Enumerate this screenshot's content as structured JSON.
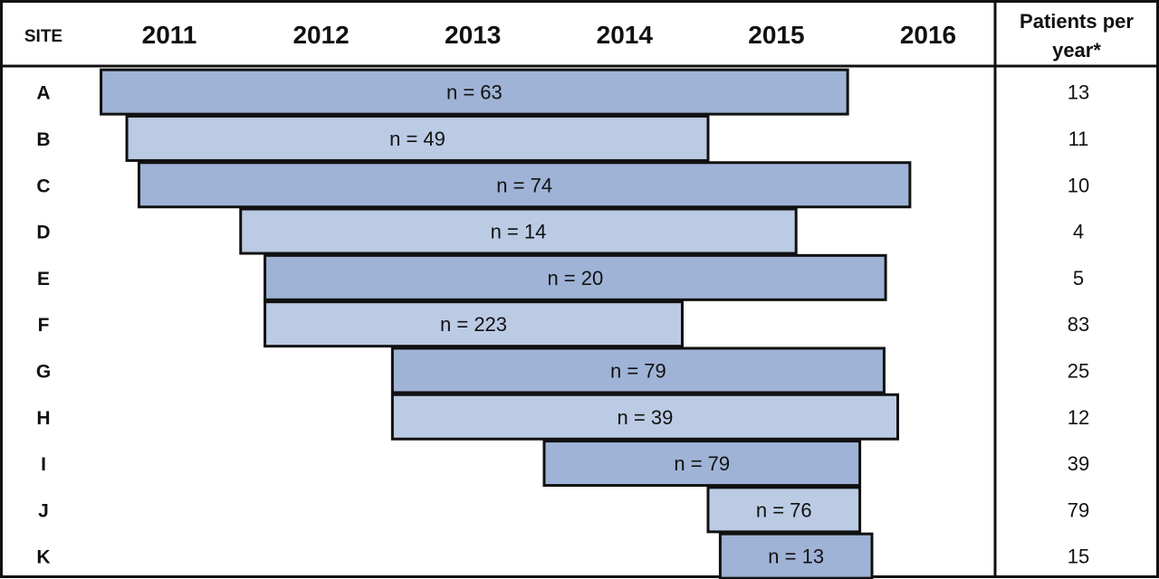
{
  "chart_data": {
    "type": "bar",
    "subtype": "gantt-timeline",
    "row_header": "SITE",
    "x_ticks": [
      "2011",
      "2012",
      "2013",
      "2014",
      "2015",
      "2016"
    ],
    "right_header": [
      "Patients per",
      "year*"
    ],
    "colors": {
      "dark": "#9fb3d6",
      "light": "#bccbe4",
      "border": "#111111"
    },
    "rows": [
      {
        "site": "A",
        "start": 2010.55,
        "end": 2015.47,
        "label": "n = 63",
        "patients_per_year": "13",
        "shade": "dark"
      },
      {
        "site": "B",
        "start": 2010.72,
        "end": 2014.55,
        "label": "n = 49",
        "patients_per_year": "11",
        "shade": "light"
      },
      {
        "site": "C",
        "start": 2010.8,
        "end": 2015.88,
        "label": "n = 74",
        "patients_per_year": "10",
        "shade": "dark"
      },
      {
        "site": "D",
        "start": 2011.47,
        "end": 2015.13,
        "label": "n = 14",
        "patients_per_year": "4",
        "shade": "light"
      },
      {
        "site": "E",
        "start": 2011.63,
        "end": 2015.72,
        "label": "n = 20",
        "patients_per_year": "5",
        "shade": "dark"
      },
      {
        "site": "F",
        "start": 2011.63,
        "end": 2014.38,
        "label": "n = 223",
        "patients_per_year": "83",
        "shade": "light"
      },
      {
        "site": "G",
        "start": 2012.47,
        "end": 2015.71,
        "label": "n = 79",
        "patients_per_year": "25",
        "shade": "dark"
      },
      {
        "site": "H",
        "start": 2012.47,
        "end": 2015.8,
        "label": "n = 39",
        "patients_per_year": "12",
        "shade": "light"
      },
      {
        "site": "I",
        "start": 2013.47,
        "end": 2015.55,
        "label": "n = 79",
        "patients_per_year": "39",
        "shade": "dark"
      },
      {
        "site": "J",
        "start": 2014.55,
        "end": 2015.55,
        "label": "n = 76",
        "patients_per_year": "79",
        "shade": "light"
      },
      {
        "site": "K",
        "start": 2014.63,
        "end": 2015.63,
        "label": "n = 13",
        "patients_per_year": "15",
        "shade": "dark"
      }
    ]
  }
}
